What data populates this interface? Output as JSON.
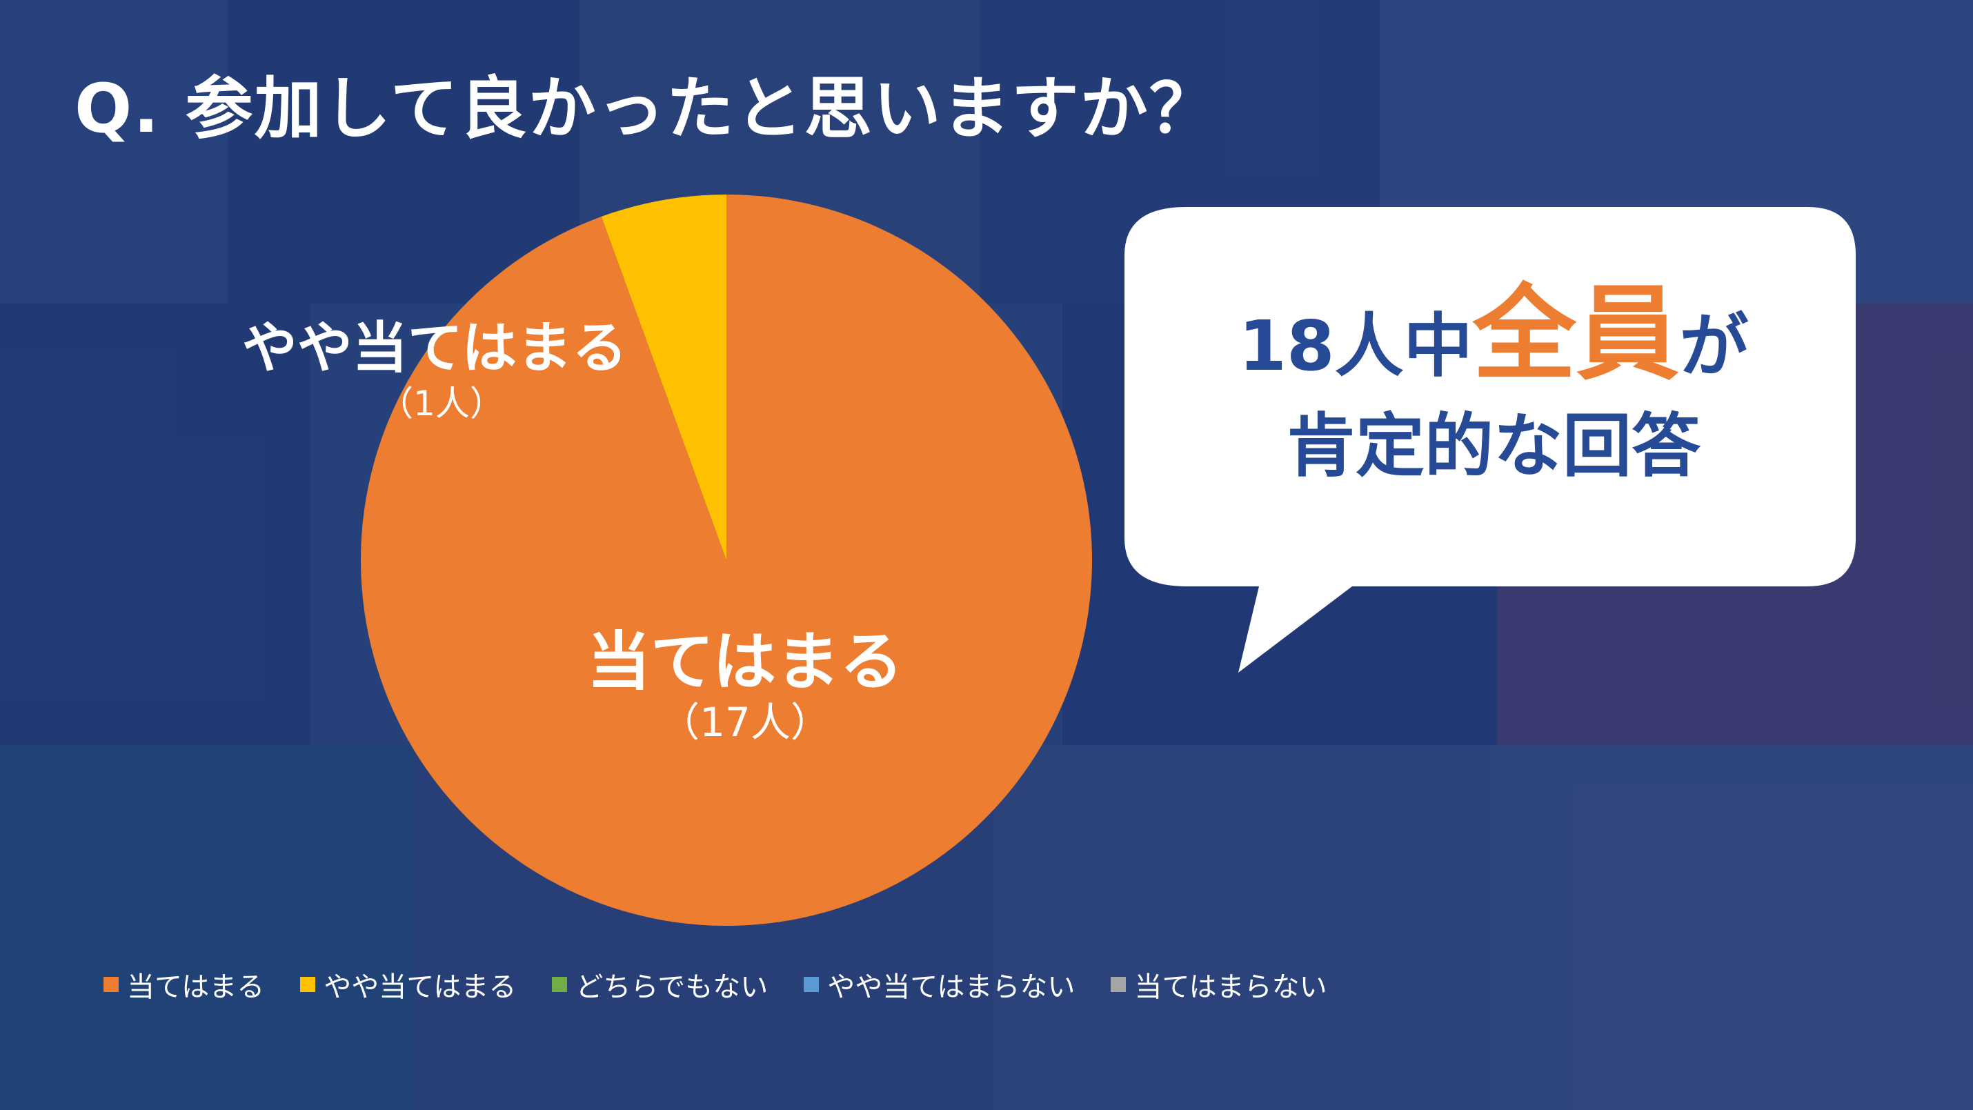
{
  "title": "Q. 参加して良かったと思いますか？",
  "chart_data": {
    "type": "pie",
    "categories": [
      "当てはまる",
      "やや当てはまる",
      "どちらでもない",
      "やや当てはまらない",
      "当てはまらない"
    ],
    "values": [
      17,
      1,
      0,
      0,
      0
    ],
    "colors": [
      "#ED7D31",
      "#FFC000",
      "#70AD47",
      "#5B9BD5",
      "#A5A5A5"
    ],
    "slice_labels": [
      {
        "name": "当てはまる",
        "count": "（17人）"
      },
      {
        "name": "やや当てはまる",
        "count": "（1人）"
      }
    ],
    "legend_position": "bottom"
  },
  "callout": {
    "prefix": "18人中",
    "highlight": "全員",
    "suffix": "が",
    "line2": "肯定的な回答"
  }
}
